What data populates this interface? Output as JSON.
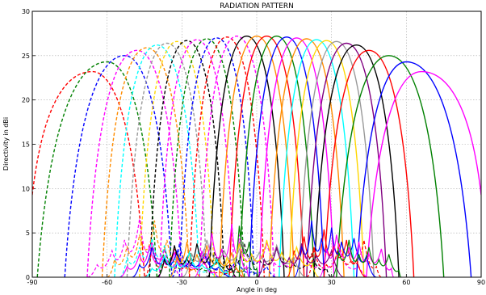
{
  "chart_data": {
    "type": "line",
    "title": "RADIATION PATTERN",
    "xlabel": "Angle in deg",
    "ylabel": "Directivity in dBi",
    "xlim": [
      -90,
      90
    ],
    "ylim": [
      0,
      30
    ],
    "xticks": [
      -90,
      -60,
      -30,
      0,
      30,
      60,
      90
    ],
    "yticks": [
      0,
      5,
      10,
      15,
      20,
      25,
      30
    ],
    "grid": true,
    "legend": "none",
    "main_beams": [
      {
        "peak_deg": -66,
        "peak_dbi": 23.2,
        "left_deg": -90,
        "left_dbi": 9.3,
        "right_deg": -45,
        "right_dbi": 0,
        "color": "#ff0000",
        "style": "dashed"
      },
      {
        "peak_deg": -60,
        "peak_dbi": 24.3,
        "left_deg": -88,
        "left_dbi": 0,
        "right_deg": -40,
        "right_dbi": 0,
        "color": "#008000",
        "style": "dashed"
      },
      {
        "peak_deg": -53,
        "peak_dbi": 25.0,
        "left_deg": -77,
        "left_dbi": 0,
        "right_deg": -34,
        "right_dbi": 0,
        "color": "#0000ff",
        "style": "dashed"
      },
      {
        "peak_deg": -48,
        "peak_dbi": 25.6,
        "left_deg": -68,
        "left_dbi": 0,
        "right_deg": -30,
        "right_dbi": 0,
        "color": "#ff00ff",
        "style": "dashed"
      },
      {
        "peak_deg": -44,
        "peak_dbi": 25.9,
        "left_deg": -62,
        "left_dbi": 0,
        "right_deg": -27,
        "right_dbi": 0,
        "color": "#ff8c00",
        "style": "dashed"
      },
      {
        "peak_deg": -40,
        "peak_dbi": 26.2,
        "left_deg": -57,
        "left_dbi": 0,
        "right_deg": -23,
        "right_dbi": 0,
        "color": "#00ffff",
        "style": "dashed"
      },
      {
        "peak_deg": -36,
        "peak_dbi": 26.4,
        "left_deg": -52,
        "left_dbi": 0,
        "right_deg": -20,
        "right_dbi": 0,
        "color": "#999999",
        "style": "dashed"
      },
      {
        "peak_deg": -32,
        "peak_dbi": 26.6,
        "left_deg": -47,
        "left_dbi": 0,
        "right_deg": -17,
        "right_dbi": 0,
        "color": "#ffd700",
        "style": "dashed"
      },
      {
        "peak_deg": -28,
        "peak_dbi": 26.7,
        "left_deg": -43,
        "left_dbi": 0,
        "right_deg": -13,
        "right_dbi": 0,
        "color": "#000000",
        "style": "dashed"
      },
      {
        "peak_deg": -24,
        "peak_dbi": 26.8,
        "left_deg": -39,
        "left_dbi": 0,
        "right_deg": -9,
        "right_dbi": 0,
        "color": "#ff00ff",
        "style": "dashed"
      },
      {
        "peak_deg": -20,
        "peak_dbi": 26.9,
        "left_deg": -35,
        "left_dbi": 0,
        "right_deg": -5,
        "right_dbi": 0,
        "color": "#008000",
        "style": "dashed"
      },
      {
        "peak_deg": -16,
        "peak_dbi": 27.0,
        "left_deg": -31,
        "left_dbi": 0,
        "right_deg": -1,
        "right_dbi": 0,
        "color": "#0000ff",
        "style": "dashed"
      },
      {
        "peak_deg": -12,
        "peak_dbi": 27.1,
        "left_deg": -27,
        "left_dbi": 0,
        "right_deg": 3,
        "right_dbi": 0,
        "color": "#ff0000",
        "style": "dashed"
      },
      {
        "peak_deg": -8,
        "peak_dbi": 27.2,
        "left_deg": -23,
        "left_dbi": 0,
        "right_deg": 7,
        "right_dbi": 0,
        "color": "#ff00ff",
        "style": "dashed"
      },
      {
        "peak_deg": -4,
        "peak_dbi": 27.2,
        "left_deg": -19,
        "left_dbi": 0,
        "right_deg": 11,
        "right_dbi": 0,
        "color": "#000000",
        "style": "solid"
      },
      {
        "peak_deg": 0,
        "peak_dbi": 27.2,
        "left_deg": -15,
        "left_dbi": 0,
        "right_deg": 15,
        "right_dbi": 0,
        "color": "#ff8c00",
        "style": "solid"
      },
      {
        "peak_deg": 4,
        "peak_dbi": 27.2,
        "left_deg": -11,
        "left_dbi": 0,
        "right_deg": 19,
        "right_dbi": 0,
        "color": "#ff0000",
        "style": "solid"
      },
      {
        "peak_deg": 8,
        "peak_dbi": 27.2,
        "left_deg": -7,
        "left_dbi": 0,
        "right_deg": 23,
        "right_dbi": 0,
        "color": "#008000",
        "style": "solid"
      },
      {
        "peak_deg": 12,
        "peak_dbi": 27.1,
        "left_deg": -3,
        "left_dbi": 0,
        "right_deg": 27,
        "right_dbi": 0,
        "color": "#0000ff",
        "style": "solid"
      },
      {
        "peak_deg": 16,
        "peak_dbi": 27.0,
        "left_deg": 1,
        "left_dbi": 0,
        "right_deg": 31,
        "right_dbi": 0,
        "color": "#ff00ff",
        "style": "solid"
      },
      {
        "peak_deg": 20,
        "peak_dbi": 26.9,
        "left_deg": 5,
        "left_dbi": 0,
        "right_deg": 35,
        "right_dbi": 0,
        "color": "#ff8c00",
        "style": "solid"
      },
      {
        "peak_deg": 24,
        "peak_dbi": 26.8,
        "left_deg": 9,
        "left_dbi": 0,
        "right_deg": 39,
        "right_dbi": 0,
        "color": "#00ffff",
        "style": "solid"
      },
      {
        "peak_deg": 28,
        "peak_dbi": 26.7,
        "left_deg": 13,
        "left_dbi": 0,
        "right_deg": 43,
        "right_dbi": 0,
        "color": "#ffd700",
        "style": "solid"
      },
      {
        "peak_deg": 32,
        "peak_dbi": 26.6,
        "left_deg": 17,
        "left_dbi": 0,
        "right_deg": 47,
        "right_dbi": 0,
        "color": "#999999",
        "style": "solid"
      },
      {
        "peak_deg": 36,
        "peak_dbi": 26.4,
        "left_deg": 20,
        "left_dbi": 0,
        "right_deg": 52,
        "right_dbi": 0,
        "color": "#800080",
        "style": "solid"
      },
      {
        "peak_deg": 40,
        "peak_dbi": 26.2,
        "left_deg": 23,
        "left_dbi": 0,
        "right_deg": 57,
        "right_dbi": 0,
        "color": "#000000",
        "style": "solid"
      },
      {
        "peak_deg": 45,
        "peak_dbi": 25.6,
        "left_deg": 27,
        "left_dbi": 0,
        "right_deg": 63,
        "right_dbi": 0,
        "color": "#ff0000",
        "style": "solid"
      },
      {
        "peak_deg": 53,
        "peak_dbi": 25.0,
        "left_deg": 32,
        "left_dbi": 0,
        "right_deg": 75,
        "right_dbi": 0,
        "color": "#008000",
        "style": "solid"
      },
      {
        "peak_deg": 60,
        "peak_dbi": 24.3,
        "left_deg": 40,
        "left_dbi": 0,
        "right_deg": 86,
        "right_dbi": 0,
        "color": "#0000ff",
        "style": "solid"
      },
      {
        "peak_deg": 66,
        "peak_dbi": 23.2,
        "left_deg": 44,
        "left_dbi": 0,
        "right_deg": 90,
        "right_dbi": 9.3,
        "color": "#ff00ff",
        "style": "solid"
      }
    ],
    "sidelobes": [
      {
        "color": "#ff0000",
        "style": "dashed",
        "from_deg": -45,
        "to_deg": -5,
        "bumps": [
          [
            -42,
            3.5
          ],
          [
            -38,
            1.5
          ],
          [
            -33,
            3.2
          ],
          [
            -28,
            1.2
          ],
          [
            -22,
            2.0
          ],
          [
            -15,
            0.6
          ],
          [
            -8,
            1.0
          ]
        ]
      },
      {
        "color": "#008000",
        "style": "dashed",
        "from_deg": -40,
        "to_deg": 2,
        "bumps": [
          [
            -37,
            3.5
          ],
          [
            -32,
            1.2
          ],
          [
            -27,
            3.0
          ],
          [
            -22,
            1.0
          ],
          [
            -16,
            2.2
          ],
          [
            -10,
            0.8
          ],
          [
            -3,
            1.2
          ]
        ]
      },
      {
        "color": "#0000ff",
        "style": "dashed",
        "from_deg": -34,
        "to_deg": 8,
        "bumps": [
          [
            -31,
            3.8
          ],
          [
            -26,
            1.5
          ],
          [
            -21,
            3.2
          ],
          [
            -15,
            1.0
          ],
          [
            -8,
            2.0
          ],
          [
            -2,
            0.6
          ],
          [
            4,
            1.2
          ]
        ]
      },
      {
        "color": "#ff00ff",
        "style": "dashed",
        "from_deg": -68,
        "to_deg": -30,
        "bumps": [
          [
            -64,
            1.4
          ],
          [
            -58,
            3.0
          ],
          [
            -53,
            4.2
          ],
          [
            -47,
            6.6
          ],
          [
            -42,
            4.0
          ],
          [
            -37,
            3.2
          ],
          [
            -33,
            1.5
          ]
        ]
      },
      {
        "color": "#ff8c00",
        "style": "dashed",
        "from_deg": -60,
        "to_deg": -22,
        "bumps": [
          [
            -57,
            2.0
          ],
          [
            -52,
            3.5
          ],
          [
            -47,
            4.8
          ],
          [
            -41,
            6.4
          ],
          [
            -36,
            4.2
          ],
          [
            -31,
            2.5
          ],
          [
            -25,
            1.0
          ]
        ]
      },
      {
        "color": "#00ffff",
        "style": "dashed",
        "from_deg": -55,
        "to_deg": -15,
        "bumps": [
          [
            -52,
            2.2
          ],
          [
            -47,
            3.4
          ],
          [
            -42,
            4.4
          ],
          [
            -37,
            3.6
          ],
          [
            -32,
            2.4
          ],
          [
            -26,
            1.6
          ],
          [
            -19,
            0.8
          ]
        ]
      },
      {
        "color": "#000000",
        "style": "dashed",
        "from_deg": -20,
        "to_deg": 30,
        "bumps": [
          [
            -17,
            2.8
          ],
          [
            -11,
            1.5
          ],
          [
            -5,
            3.8
          ],
          [
            1,
            2.0
          ],
          [
            8,
            3.2
          ],
          [
            15,
            1.4
          ],
          [
            22,
            2.6
          ],
          [
            28,
            1.0
          ]
        ]
      },
      {
        "color": "#ff00ff",
        "style": "dashed",
        "from_deg": -10,
        "to_deg": 45,
        "bumps": [
          [
            -7,
            4.8
          ],
          [
            -2,
            2.5
          ],
          [
            4,
            3.8
          ],
          [
            11,
            1.6
          ],
          [
            18,
            3.4
          ],
          [
            25,
            1.4
          ],
          [
            33,
            2.8
          ],
          [
            41,
            1.2
          ]
        ]
      },
      {
        "color": "#ff0000",
        "style": "dashed",
        "from_deg": 20,
        "to_deg": 50,
        "bumps": [
          [
            23,
            3.0
          ],
          [
            28,
            1.4
          ],
          [
            33,
            3.8
          ],
          [
            38,
            2.0
          ],
          [
            43,
            4.2
          ],
          [
            48,
            1.2
          ]
        ]
      },
      {
        "color": "#ff00ff",
        "style": "solid",
        "from_deg": -55,
        "to_deg": -15,
        "bumps": [
          [
            -52,
            1.2
          ],
          [
            -47,
            2.6
          ],
          [
            -43,
            3.6
          ],
          [
            -38,
            2.2
          ],
          [
            -33,
            2.8
          ],
          [
            -28,
            1.6
          ],
          [
            -21,
            1.8
          ],
          [
            -17,
            0.6
          ]
        ]
      },
      {
        "color": "#0000ff",
        "style": "solid",
        "from_deg": -50,
        "to_deg": -10,
        "bumps": [
          [
            -47,
            1.4
          ],
          [
            -42,
            3.4
          ],
          [
            -37,
            2.2
          ],
          [
            -32,
            3.0
          ],
          [
            -27,
            1.8
          ],
          [
            -21,
            2.6
          ],
          [
            -15,
            1.2
          ]
        ]
      },
      {
        "color": "#000000",
        "style": "solid",
        "from_deg": -40,
        "to_deg": -8,
        "bumps": [
          [
            -37,
            2.0
          ],
          [
            -33,
            3.6
          ],
          [
            -28,
            2.2
          ],
          [
            -24,
            3.8
          ],
          [
            -19,
            2.4
          ],
          [
            -14,
            3.2
          ],
          [
            -10,
            1.0
          ]
        ]
      },
      {
        "color": "#ff8c00",
        "style": "solid",
        "from_deg": -35,
        "to_deg": -5,
        "bumps": [
          [
            -32,
            2.4
          ],
          [
            -28,
            4.0
          ],
          [
            -24,
            2.6
          ],
          [
            -20,
            3.6
          ],
          [
            -15,
            2.0
          ],
          [
            -10,
            2.8
          ],
          [
            -6,
            0.8
          ]
        ]
      },
      {
        "color": "#ff00ff",
        "style": "solid",
        "from_deg": -25,
        "to_deg": -3,
        "bumps": [
          [
            -22,
            3.0
          ],
          [
            -18,
            5.0
          ],
          [
            -14,
            3.2
          ],
          [
            -10,
            6.0
          ],
          [
            -7,
            4.0
          ],
          [
            -4,
            1.2
          ]
        ]
      },
      {
        "color": "#008000",
        "style": "solid",
        "from_deg": -10,
        "to_deg": 1,
        "bumps": [
          [
            -7,
            5.8
          ],
          [
            -3,
            4.0
          ],
          [
            0,
            1.0
          ]
        ]
      },
      {
        "color": "#ff0000",
        "style": "solid",
        "from_deg": 12,
        "to_deg": 44,
        "bumps": [
          [
            15,
            3.0
          ],
          [
            19,
            4.6
          ],
          [
            23,
            3.4
          ],
          [
            27,
            5.4
          ],
          [
            31,
            3.6
          ],
          [
            36,
            4.2
          ],
          [
            40,
            2.0
          ]
        ]
      },
      {
        "color": "#0000ff",
        "style": "solid",
        "from_deg": 15,
        "to_deg": 48,
        "bumps": [
          [
            18,
            3.6
          ],
          [
            22,
            6.4
          ],
          [
            26,
            4.4
          ],
          [
            30,
            5.6
          ],
          [
            34,
            4.0
          ],
          [
            39,
            4.4
          ],
          [
            44,
            2.4
          ]
        ]
      },
      {
        "color": "#ff00ff",
        "style": "solid",
        "from_deg": 25,
        "to_deg": 55,
        "bumps": [
          [
            28,
            3.2
          ],
          [
            32,
            4.8
          ],
          [
            37,
            3.4
          ],
          [
            41,
            4.0
          ],
          [
            45,
            2.6
          ],
          [
            50,
            3.2
          ],
          [
            54,
            1.0
          ]
        ]
      },
      {
        "color": "#008000",
        "style": "solid",
        "from_deg": 30,
        "to_deg": 58,
        "bumps": [
          [
            33,
            2.8
          ],
          [
            37,
            4.2
          ],
          [
            41,
            2.6
          ],
          [
            45,
            3.4
          ],
          [
            49,
            2.0
          ],
          [
            53,
            2.6
          ],
          [
            57,
            0.8
          ]
        ]
      },
      {
        "color": "#999999",
        "style": "solid",
        "from_deg": -30,
        "to_deg": 20,
        "bumps": [
          [
            -26,
            2.6
          ],
          [
            -20,
            4.2
          ],
          [
            -13,
            3.0
          ],
          [
            -6,
            4.0
          ],
          [
            1,
            2.8
          ],
          [
            8,
            3.6
          ],
          [
            15,
            2.2
          ]
        ]
      },
      {
        "color": "#ffd700",
        "style": "solid",
        "from_deg": -15,
        "to_deg": 25,
        "bumps": [
          [
            -12,
            2.2
          ],
          [
            -7,
            3.8
          ],
          [
            -2,
            2.6
          ],
          [
            4,
            4.2
          ],
          [
            10,
            2.8
          ],
          [
            16,
            3.4
          ],
          [
            22,
            1.8
          ]
        ]
      },
      {
        "color": "#00ffff",
        "style": "solid",
        "from_deg": -45,
        "to_deg": -10,
        "bumps": [
          [
            -42,
            1.0
          ],
          [
            -37,
            2.4
          ],
          [
            -32,
            1.6
          ],
          [
            -27,
            2.8
          ],
          [
            -22,
            1.4
          ],
          [
            -16,
            2.0
          ],
          [
            -12,
            0.6
          ]
        ]
      },
      {
        "color": "#800080",
        "style": "solid",
        "from_deg": 0,
        "to_deg": 35,
        "bumps": [
          [
            3,
            2.0
          ],
          [
            8,
            3.4
          ],
          [
            13,
            2.2
          ],
          [
            18,
            3.8
          ],
          [
            24,
            2.4
          ],
          [
            30,
            3.0
          ]
        ]
      }
    ]
  }
}
